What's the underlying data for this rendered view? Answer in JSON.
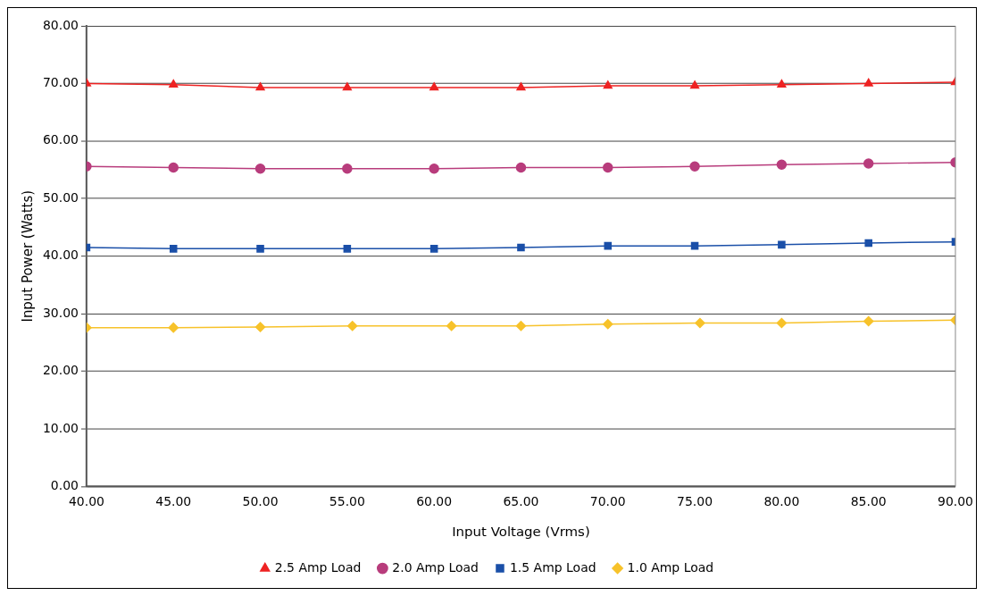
{
  "chart_data": {
    "type": "line",
    "xlabel": "Input Voltage (Vrms)",
    "ylabel": "Input Power (Watts)",
    "x": [
      40,
      45,
      50,
      55,
      60,
      65,
      70,
      75,
      80,
      85,
      90
    ],
    "xlim": [
      40,
      90
    ],
    "xticks": [
      {
        "value": 40,
        "label": "40.00"
      },
      {
        "value": 45,
        "label": "45.00"
      },
      {
        "value": 50,
        "label": "50.00"
      },
      {
        "value": 55,
        "label": "55.00"
      },
      {
        "value": 60,
        "label": "60.00"
      },
      {
        "value": 65,
        "label": "65.00"
      },
      {
        "value": 70,
        "label": "70.00"
      },
      {
        "value": 75,
        "label": "75.00"
      },
      {
        "value": 80,
        "label": "80.00"
      },
      {
        "value": 85,
        "label": "85.00"
      },
      {
        "value": 90,
        "label": "90.00"
      }
    ],
    "ylim": [
      0,
      80
    ],
    "yticks": [
      {
        "value": 0,
        "label": "0.00"
      },
      {
        "value": 10,
        "label": "10.00"
      },
      {
        "value": 20,
        "label": "20.00"
      },
      {
        "value": 30,
        "label": "30.00"
      },
      {
        "value": 40,
        "label": "40.00"
      },
      {
        "value": 50,
        "label": "50.00"
      },
      {
        "value": 60,
        "label": "60.00"
      },
      {
        "value": 70,
        "label": "70.00"
      },
      {
        "value": 80,
        "label": "80.00"
      }
    ],
    "grid": "y",
    "legend": "bottom",
    "series": [
      {
        "name": "2.5 Amp Load",
        "color": "#ee2222",
        "marker": "triangle",
        "values": [
          70.0,
          69.8,
          69.3,
          69.3,
          69.3,
          69.3,
          69.6,
          69.6,
          69.8,
          70.0,
          70.2
        ]
      },
      {
        "name": "2.0 Amp Load",
        "color": "#b83c7c",
        "marker": "circle",
        "values": [
          55.6,
          55.4,
          55.2,
          55.2,
          55.2,
          55.4,
          55.4,
          55.6,
          55.9,
          56.1,
          56.3
        ]
      },
      {
        "name": "1.5 Amp Load",
        "color": "#1a4fa8",
        "marker": "square",
        "values": [
          41.5,
          41.3,
          41.3,
          41.3,
          41.3,
          41.5,
          41.8,
          41.8,
          42.0,
          42.3,
          42.5
        ]
      },
      {
        "name": "1.0 Amp Load",
        "color": "#f7c22a",
        "marker": "diamond",
        "x": [
          40,
          45,
          50,
          55.3,
          61,
          65,
          70,
          75.3,
          80,
          85,
          90
        ],
        "values": [
          27.6,
          27.6,
          27.7,
          27.9,
          27.9,
          27.9,
          28.2,
          28.4,
          28.4,
          28.7,
          28.9
        ]
      }
    ]
  }
}
